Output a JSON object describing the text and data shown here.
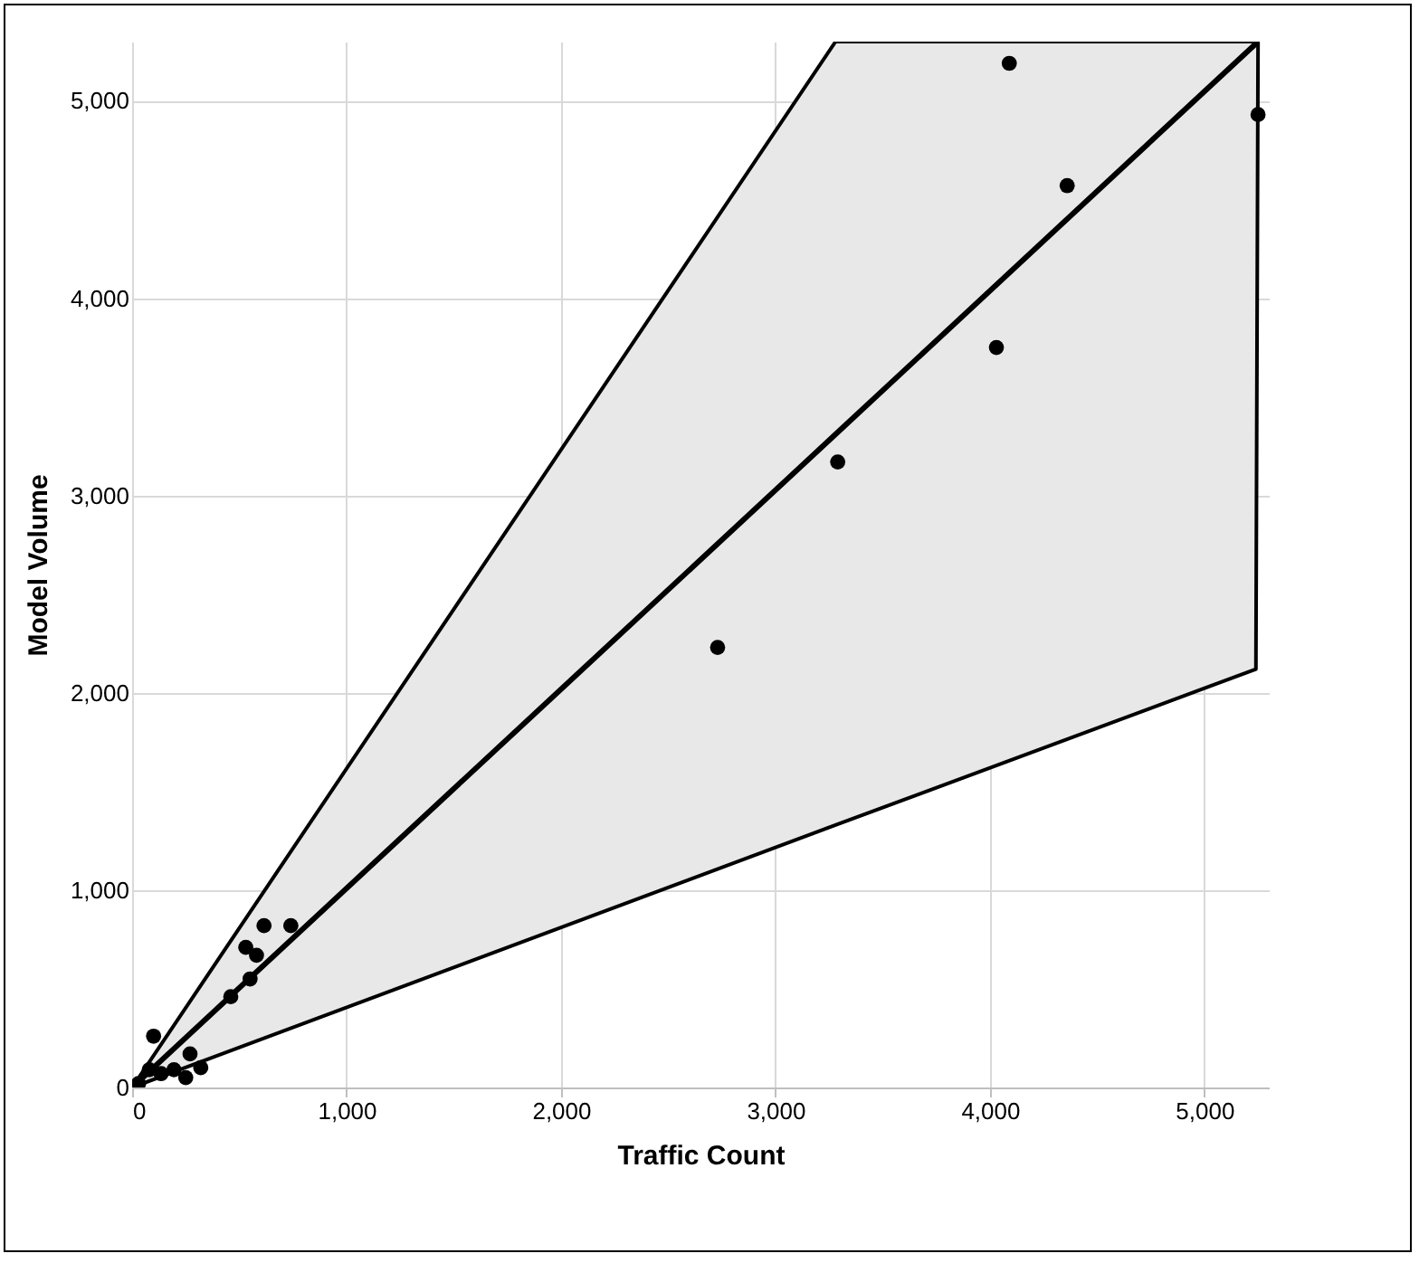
{
  "chart_data": {
    "type": "scatter",
    "xlabel": "Traffic Count",
    "ylabel": "Model Volume",
    "xlim": [
      0,
      5300
    ],
    "ylim": [
      0,
      5300
    ],
    "xticks": [
      {
        "value": 0,
        "label": "0"
      },
      {
        "value": 1000,
        "label": "1,000"
      },
      {
        "value": 2000,
        "label": "2,000"
      },
      {
        "value": 3000,
        "label": "3,000"
      },
      {
        "value": 4000,
        "label": "4,000"
      },
      {
        "value": 5000,
        "label": "5,000"
      }
    ],
    "yticks": [
      {
        "value": 0,
        "label": "0"
      },
      {
        "value": 1000,
        "label": "1,000"
      },
      {
        "value": 2000,
        "label": "2,000"
      },
      {
        "value": 3000,
        "label": "3,000"
      },
      {
        "value": 4000,
        "label": "4,000"
      },
      {
        "value": 5000,
        "label": "5,000"
      }
    ],
    "grid": true,
    "marker": "circle",
    "series": [
      {
        "type": "line",
        "marker": "none",
        "color": "#000000",
        "x": [
          0,
          3280,
          5240,
          5250
        ],
        "values": [
          0,
          3310,
          5290,
          5300
        ],
        "lower": [
          0,
          1330,
          2120,
          5300
        ],
        "upper": [
          0,
          5300,
          5300,
          5300
        ]
      },
      {
        "color": "#000000",
        "x": [
          4090,
          5250,
          4360,
          4030,
          3290,
          2730,
          615,
          740,
          530,
          580,
          550,
          460,
          100,
          270,
          320,
          250,
          195,
          135,
          80,
          30
        ],
        "values": [
          5190,
          4930,
          4570,
          3750,
          3170,
          2230,
          820,
          820,
          710,
          670,
          550,
          460,
          260,
          170,
          100,
          50,
          90,
          70,
          90,
          20
        ]
      }
    ]
  }
}
